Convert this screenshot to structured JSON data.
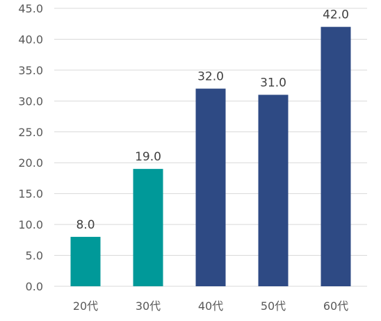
{
  "chart_data": {
    "type": "bar",
    "title": "",
    "xlabel": "",
    "ylabel": "",
    "categories": [
      "20代",
      "30代",
      "40代",
      "50代",
      "60代"
    ],
    "values": [
      8.0,
      19.0,
      32.0,
      31.0,
      42.0
    ],
    "data_labels": [
      "8.0",
      "19.0",
      "32.0",
      "31.0",
      "42.0"
    ],
    "ylim": [
      0,
      45
    ],
    "y_ticks": [
      0,
      5,
      10,
      15,
      20,
      25,
      30,
      35,
      40,
      45
    ],
    "y_tick_labels": [
      "0.0",
      "5.0",
      "10.0",
      "15.0",
      "20.0",
      "25.0",
      "30.0",
      "35.0",
      "40.0",
      "45.0"
    ],
    "grid": true,
    "legend": "none",
    "bar_colors": [
      "#009999",
      "#009999",
      "#2E4A84",
      "#2E4A84",
      "#2E4A84"
    ],
    "colors": {
      "gridline": "#D9D9D9",
      "axis_line": "#D9D9D9",
      "text": "#595959",
      "label_text": "#404040"
    }
  }
}
